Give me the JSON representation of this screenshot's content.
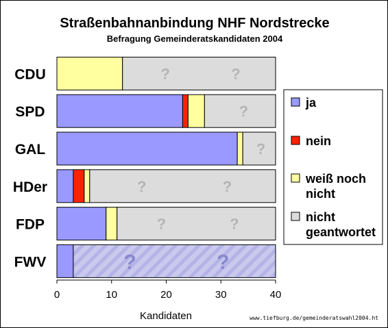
{
  "chart_data": {
    "type": "bar",
    "orientation": "horizontal",
    "stacked": true,
    "title": "Straßenbahnanbindung NHF Nordstrecke",
    "subtitle": "Befragung Gemeinderatskandidaten 2004",
    "categories": [
      "CDU",
      "SPD",
      "GAL",
      "HDer",
      "FDP",
      "FWV"
    ],
    "series": [
      {
        "name": "ja",
        "color": "#9999ff",
        "values": [
          0,
          23,
          33,
          3,
          9,
          3
        ]
      },
      {
        "name": "nein",
        "color": "#ff2200",
        "values": [
          0,
          1,
          0,
          2,
          0,
          0
        ]
      },
      {
        "name": "weiß noch nicht",
        "color": "#ffffa0",
        "values": [
          12,
          3,
          1,
          1,
          2,
          0
        ]
      },
      {
        "name": "nicht geantwortet",
        "color": "#dcdcdc",
        "values": [
          28,
          13,
          6,
          34,
          29,
          37
        ]
      }
    ],
    "legend_lines": [
      [
        "ja"
      ],
      [
        "nein"
      ],
      [
        "weiß noch",
        "nicht"
      ],
      [
        "nicht",
        "geantwortet"
      ]
    ],
    "xlabel": "Kandidaten",
    "xlim": [
      0,
      40
    ],
    "xticks": [
      "0",
      "10",
      "20",
      "30",
      "40"
    ],
    "question_mark": "?",
    "legend_position": "right",
    "grid": false
  },
  "credit": "www.tiefburg.de/gemeinderatswahl2004.ht"
}
